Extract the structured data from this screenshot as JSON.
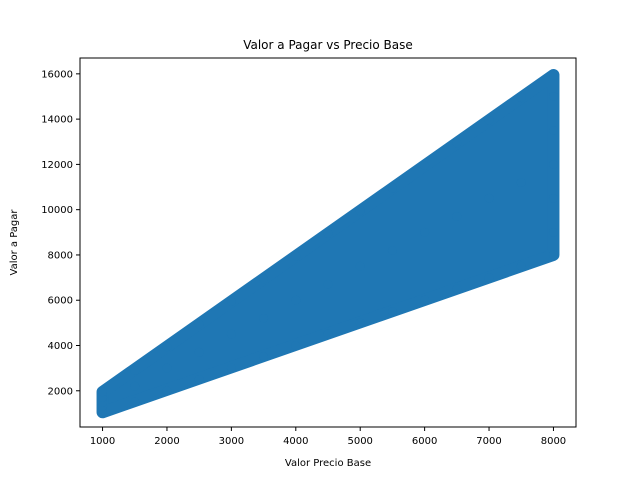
{
  "chart_data": {
    "type": "scatter",
    "title": "Valor a Pagar vs Precio Base",
    "xlabel": "Valor Precio Base",
    "ylabel": "Valor a Pagar",
    "xlim": [
      650,
      8350
    ],
    "ylim": [
      400,
      16700
    ],
    "xticks": [
      1000,
      2000,
      3000,
      4000,
      5000,
      6000,
      7000,
      8000
    ],
    "yticks": [
      2000,
      4000,
      6000,
      8000,
      10000,
      12000,
      14000,
      16000
    ],
    "grid": false,
    "legend": "none",
    "marker_color": "#1f77b4",
    "series": [
      {
        "x": [
          1000,
          1000,
          1000,
          1000,
          1000,
          1500,
          1500,
          1500,
          2000,
          2000,
          2000,
          2500,
          2500,
          2500,
          3000,
          3000,
          3000,
          3500,
          3500,
          3500,
          4000,
          4000,
          4000,
          4500,
          4500,
          4500,
          5000,
          5000,
          5000,
          5500,
          5500,
          5500,
          6000,
          6000,
          6000,
          6500,
          6500,
          6500,
          7000,
          7000,
          7000,
          7500,
          7500,
          7500,
          8000,
          8000,
          8000,
          8000,
          8000,
          8000,
          8000
        ],
        "y": [
          1050,
          1300,
          1500,
          1700,
          1950,
          1500,
          2200,
          2900,
          2000,
          3000,
          3950,
          2500,
          3700,
          4950,
          3000,
          4500,
          5950,
          3500,
          5200,
          6950,
          4000,
          6000,
          7950,
          4500,
          6700,
          8950,
          5000,
          7500,
          9950,
          5500,
          8200,
          10950,
          6000,
          9000,
          11950,
          6500,
          9700,
          12950,
          7000,
          10500,
          13950,
          7500,
          11200,
          14950,
          8000,
          9000,
          10500,
          12000,
          13500,
          15000,
          15950
        ]
      }
    ]
  }
}
